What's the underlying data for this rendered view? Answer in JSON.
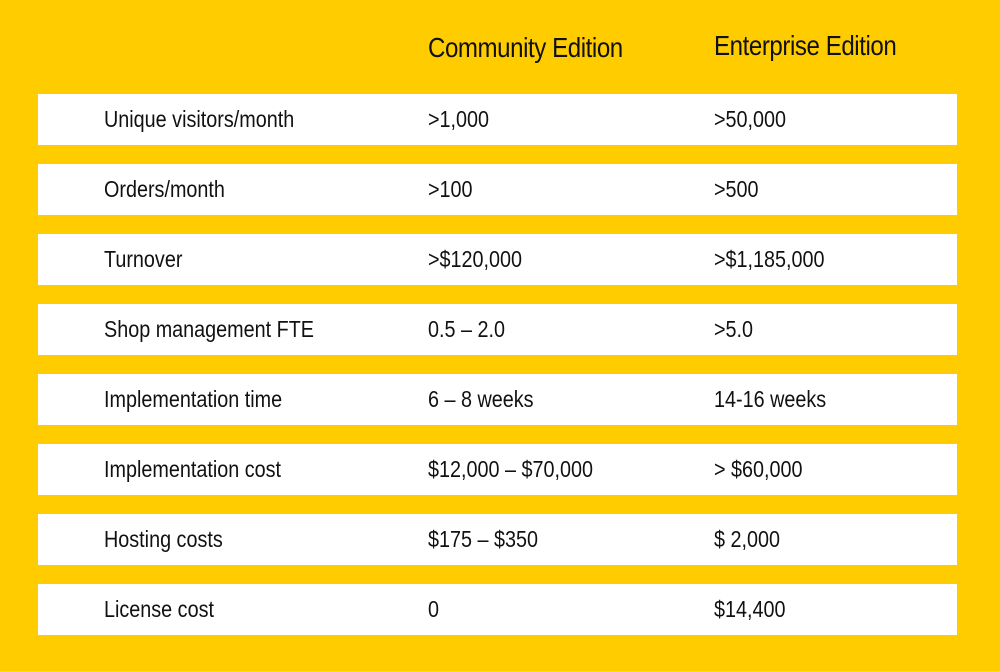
{
  "header": {
    "community_title": "Community Edition",
    "enterprise_title": "Enterprise Edition"
  },
  "rows": [
    {
      "label": "Unique visitors/month",
      "community": ">1,000",
      "enterprise": ">50,000"
    },
    {
      "label": "Orders/month",
      "community": ">100",
      "enterprise": ">500"
    },
    {
      "label": "Turnover",
      "community": ">$120,000",
      "enterprise": ">$1,185,000"
    },
    {
      "label": "Shop management FTE",
      "community": "0.5 – 2.0",
      "enterprise": " >5.0"
    },
    {
      "label": "Implementation time",
      "community": "6 – 8 weeks",
      "enterprise": "14-16 weeks"
    },
    {
      "label": "Implementation cost",
      "community": "$12,000 – $70,000",
      "enterprise": "> $60,000"
    },
    {
      "label": "Hosting costs",
      "community": "$175 – $350",
      "enterprise": "$ 2,000"
    },
    {
      "label": "License cost",
      "community": "0",
      "enterprise": "$14,400"
    }
  ],
  "colors": {
    "background": "#FFCC00",
    "row_background": "#FFFFFF",
    "text": "#111111"
  }
}
